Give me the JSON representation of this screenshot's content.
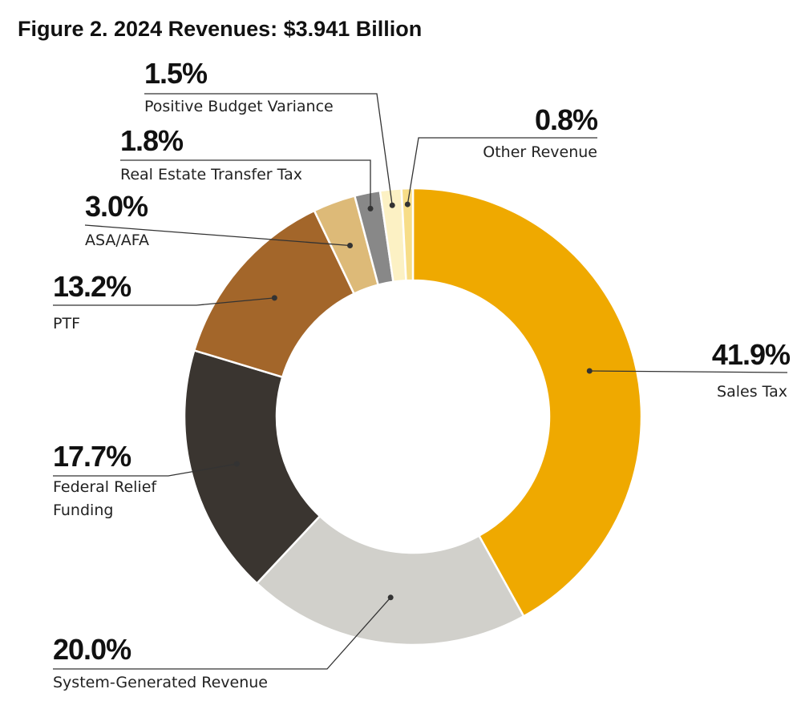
{
  "chart_data": {
    "type": "pie",
    "title": "Figure 2. 2024 Revenues: $3.941 Billion",
    "donut": true,
    "slices": [
      {
        "key": "sales-tax",
        "label": "Sales Tax",
        "value": 41.9,
        "pct": "41.9%",
        "color": "#EFA900"
      },
      {
        "key": "system-generated",
        "label": "System-Generated Revenue",
        "value": 20.0,
        "pct": "20.0%",
        "color": "#D1D0CB"
      },
      {
        "key": "federal-relief",
        "label_lines": [
          "Federal Relief",
          "Funding"
        ],
        "value": 17.7,
        "pct": "17.7%",
        "color": "#3A3530"
      },
      {
        "key": "ptf",
        "label": "PTF",
        "value": 13.2,
        "pct": "13.2%",
        "color": "#A3662A"
      },
      {
        "key": "asa-afa",
        "label": "ASA/AFA",
        "value": 3.0,
        "pct": "3.0%",
        "color": "#DDBA78"
      },
      {
        "key": "real-estate-transfer-tax",
        "label": "Real Estate Transfer Tax",
        "value": 1.8,
        "pct": "1.8%",
        "color": "#888888"
      },
      {
        "key": "positive-budget-variance",
        "label": "Positive Budget Variance",
        "value": 1.5,
        "pct": "1.5%",
        "color": "#FCF1C4"
      },
      {
        "key": "other-revenue",
        "label": "Other Revenue",
        "value": 0.8,
        "pct": "0.8%",
        "color": "#F7DD88"
      }
    ]
  }
}
